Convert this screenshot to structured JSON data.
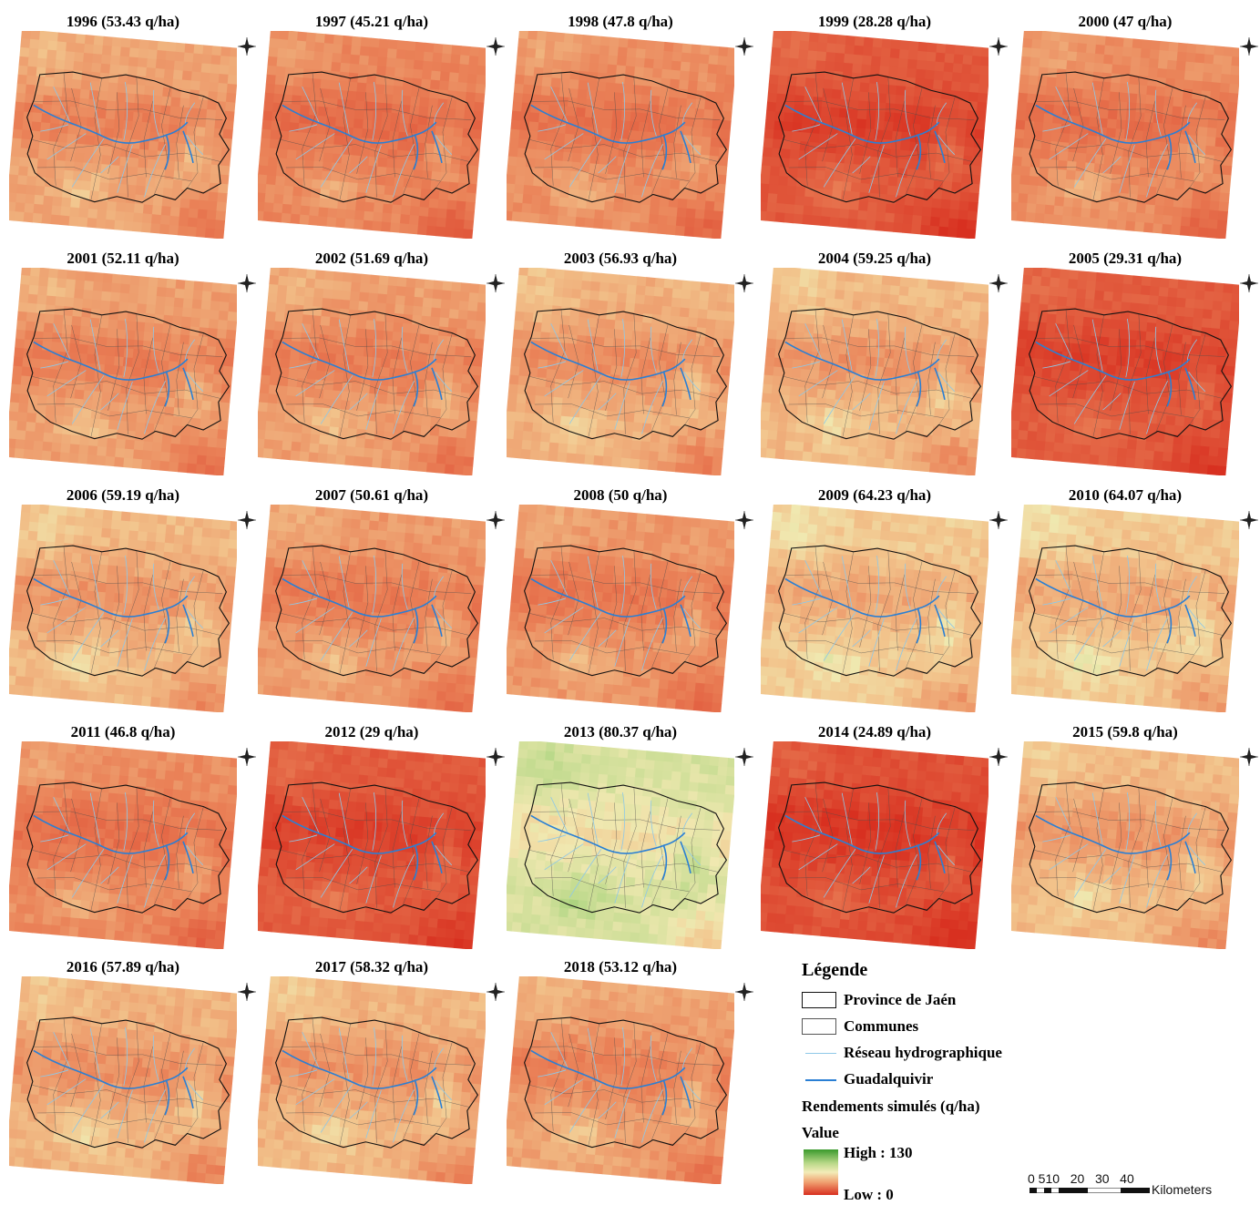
{
  "panels": [
    {
      "year": "1996",
      "title": "1996 (53.43 q/ha)",
      "yield": 53.43
    },
    {
      "year": "1997",
      "title": "1997 (45.21 q/ha)",
      "yield": 45.21
    },
    {
      "year": "1998",
      "title": "1998 (47.8 q/ha)",
      "yield": 47.8
    },
    {
      "year": "1999",
      "title": "1999 (28.28 q/ha)",
      "yield": 28.28
    },
    {
      "year": "2000",
      "title": "2000 (47 q/ha)",
      "yield": 47
    },
    {
      "year": "2001",
      "title": "2001 (52.11 q/ha)",
      "yield": 52.11
    },
    {
      "year": "2002",
      "title": "2002 (51.69 q/ha)",
      "yield": 51.69
    },
    {
      "year": "2003",
      "title": "2003 (56.93 q/ha)",
      "yield": 56.93
    },
    {
      "year": "2004",
      "title": "2004 (59.25 q/ha)",
      "yield": 59.25
    },
    {
      "year": "2005",
      "title": "2005 (29.31 q/ha)",
      "yield": 29.31
    },
    {
      "year": "2006",
      "title": "2006 (59.19 q/ha)",
      "yield": 59.19
    },
    {
      "year": "2007",
      "title": "2007 (50.61 q/ha)",
      "yield": 50.61
    },
    {
      "year": "2008",
      "title": "2008 (50 q/ha)",
      "yield": 50
    },
    {
      "year": "2009",
      "title": "2009 (64.23 q/ha)",
      "yield": 64.23
    },
    {
      "year": "2010",
      "title": "2010 (64.07 q/ha)",
      "yield": 64.07
    },
    {
      "year": "2011",
      "title": "2011 (46.8 q/ha)",
      "yield": 46.8
    },
    {
      "year": "2012",
      "title": "2012 (29 q/ha)",
      "yield": 29
    },
    {
      "year": "2013",
      "title": "2013 (80.37 q/ha)",
      "yield": 80.37
    },
    {
      "year": "2014",
      "title": "2014 (24.89 q/ha)",
      "yield": 24.89
    },
    {
      "year": "2015",
      "title": "2015 (59.8 q/ha)",
      "yield": 59.8
    },
    {
      "year": "2016",
      "title": "2016 (57.89 q/ha)",
      "yield": 57.89
    },
    {
      "year": "2017",
      "title": "2017 (58.32 q/ha)",
      "yield": 58.32
    },
    {
      "year": "2018",
      "title": "2018 (53.12 q/ha)",
      "yield": 53.12
    }
  ],
  "legend": {
    "title": "Légende",
    "province": "Province de Jaén",
    "communes": "Communes",
    "network": "Réseau hydrographique",
    "river": "Guadalquivir",
    "raster_title": "Rendements simulés (q/ha)",
    "value_label": "Value",
    "high": "High : 130",
    "low": "Low : 0",
    "high_value": 130,
    "low_value": 0,
    "colors": {
      "high": "#3a9a2c",
      "mid": "#f3ecb8",
      "low": "#d83020",
      "river": "#2a7fd4",
      "network": "#8ec8e8"
    }
  },
  "scalebar": {
    "ticks": "0 510   20   30   40",
    "unit": "Kilometers"
  }
}
